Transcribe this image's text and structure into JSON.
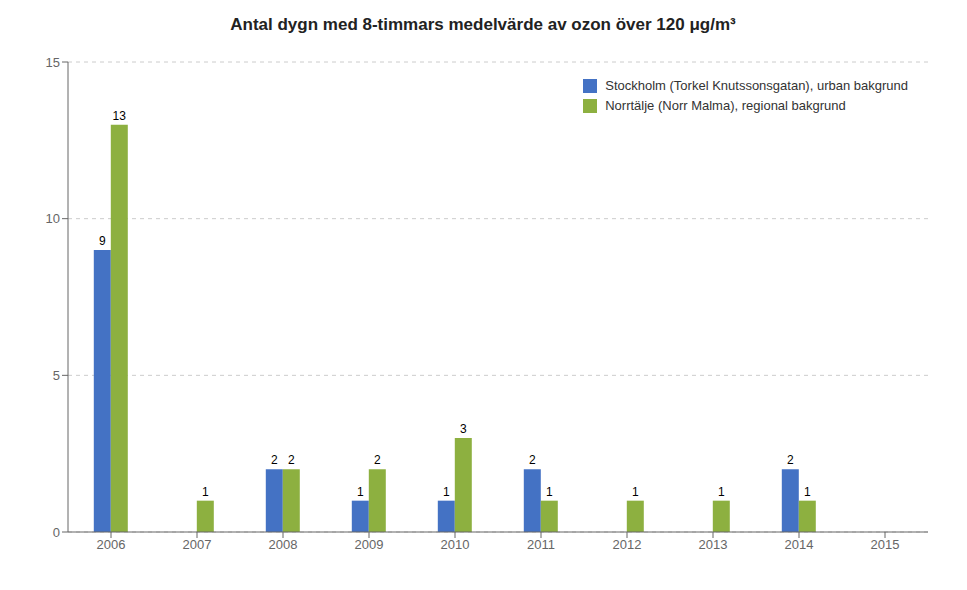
{
  "chart_data": {
    "type": "bar",
    "title": "Antal dygn med 8-timmars medelvärde av ozon över 120 μg/m³",
    "categories": [
      "2006",
      "2007",
      "2008",
      "2009",
      "2010",
      "2011",
      "2012",
      "2013",
      "2014",
      "2015"
    ],
    "series": [
      {
        "name": "Stockholm (Torkel Knutssonsgatan), urban bakgrund",
        "color": "#4472C4",
        "values": [
          9,
          0,
          2,
          1,
          1,
          2,
          0,
          0,
          2,
          0
        ]
      },
      {
        "name": "Norrtälje (Norr Malma), regional bakgrund",
        "color": "#8DB040",
        "values": [
          13,
          1,
          2,
          2,
          3,
          1,
          1,
          1,
          1,
          0
        ]
      }
    ],
    "ylim": [
      0,
      15
    ],
    "yticks": [
      0,
      5,
      10,
      15
    ],
    "grid": true,
    "legend": "upper right",
    "data_labels": true
  }
}
